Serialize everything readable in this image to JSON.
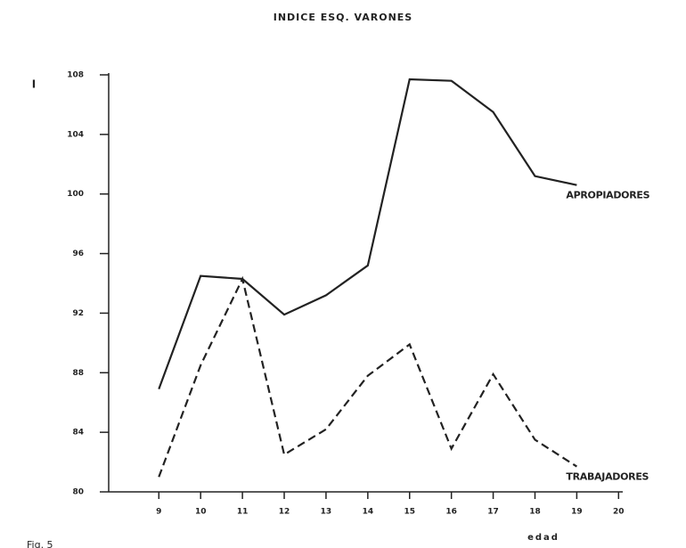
{
  "chart_data": {
    "type": "line",
    "title": "INDICE ESQ. VARONES",
    "ylabel": "I",
    "xlabel": "edad",
    "caption": "Fig. 5",
    "x": [
      9,
      10,
      11,
      12,
      13,
      14,
      15,
      16,
      17,
      18,
      19
    ],
    "series": [
      {
        "name": "APROPIADORES",
        "color": "#222222",
        "dash": false,
        "values": [
          86.9,
          94.5,
          94.3,
          91.9,
          93.2,
          95.2,
          107.7,
          107.6,
          105.5,
          101.2,
          100.6
        ]
      },
      {
        "name": "TRABAJADORES",
        "color": "#222222",
        "dash": true,
        "values": [
          81.0,
          88.5,
          94.3,
          82.5,
          84.2,
          87.8,
          89.9,
          82.9,
          87.9,
          83.5,
          81.7
        ]
      }
    ],
    "xlim": [
      7.8,
      20.1
    ],
    "xticks": [
      9,
      10,
      11,
      12,
      13,
      14,
      15,
      16,
      17,
      18,
      19,
      20
    ],
    "ylim": [
      80,
      108
    ],
    "yticks": [
      80,
      84,
      88,
      92,
      96,
      100,
      104,
      108
    ],
    "grid": false
  }
}
